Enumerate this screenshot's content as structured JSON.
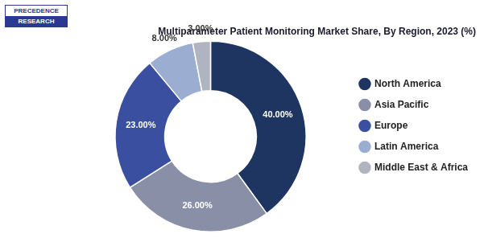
{
  "chart_data": {
    "type": "doughnut",
    "title": "Multiparameter Patient Monitoring Market Share, By Region, 2023 (%)",
    "categories": [
      "North America",
      "Asia Pacific",
      "Europe",
      "Latin America",
      "Middle East & Africa"
    ],
    "values": [
      40.0,
      26.0,
      23.0,
      8.0,
      3.0
    ],
    "value_labels": [
      "40.00%",
      "26.00%",
      "23.00%",
      "8.00%",
      "3.00%"
    ],
    "colors": [
      "#1e3461",
      "#8a8fa8",
      "#3a4fa0",
      "#9badd0",
      "#b0b3c0"
    ],
    "data_labels": true,
    "legend": "right",
    "annotations": [
      "PRECEDENCE",
      "RESEARCH"
    ]
  }
}
